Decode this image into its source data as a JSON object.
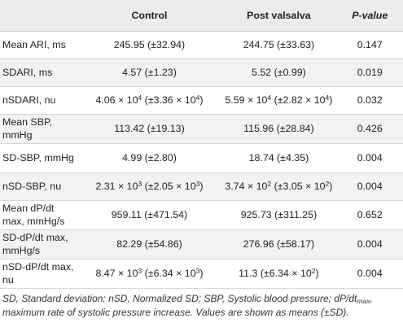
{
  "table": {
    "headers": [
      "",
      "Control",
      "Post valsalva",
      "P-value"
    ],
    "rows": [
      {
        "label": "Mean ARI, ms",
        "control": "245.95 (±32.94)",
        "post": "244.75 (±33.63)",
        "p": "0.147"
      },
      {
        "label": "SDARI, ms",
        "control": "4.57 (±1.23)",
        "post": "5.52 (±0.99)",
        "p": "0.019"
      },
      {
        "label": "nSDARI, nu",
        "control": {
          "a": "4.06 × 10",
          "ae": "4",
          "b": " (±3.36 × 10",
          "be": "4",
          "c": ")"
        },
        "post": {
          "a": "5.59 × 10",
          "ae": "4",
          "b": " (±2.82 × 10",
          "be": "4",
          "c": ")"
        },
        "p": "0.032"
      },
      {
        "label": "Mean SBP, mmHg",
        "control": "113.42 (±19.13)",
        "post": "115.96 (±28.84)",
        "p": "0.426"
      },
      {
        "label": "SD-SBP, mmHg",
        "control": "4.99 (±2.80)",
        "post": "18.74 (±4.35)",
        "p": "0.004"
      },
      {
        "label": "nSD-SBP, nu",
        "control": {
          "a": "2.31 × 10",
          "ae": "3",
          "b": " (±2.05 × 10",
          "be": "3",
          "c": ")"
        },
        "post": {
          "a": "3.74 × 10",
          "ae": "2",
          "b": " (±3.05 × 10",
          "be": "2",
          "c": ")"
        },
        "p": "0.004"
      },
      {
        "label": "Mean dP/dt max, mmHg/s",
        "control": "959.11 (±471.54)",
        "post": "925.73 (±311.25)",
        "p": "0.652"
      },
      {
        "label": "SD-dP/dt max, mmHg/s",
        "control": "82.29 (±54.86)",
        "post": "276.96 (±58.17)",
        "p": "0.004"
      },
      {
        "label": "nSD-dP/dt max, nu",
        "control": {
          "a": "8.47 × 10",
          "ae": "3",
          "b": " (±6.34 × 10",
          "be": "3",
          "c": ")"
        },
        "post": {
          "a": "11.3 (±6.34 × 10",
          "ae": "2",
          "b": ")",
          "be": "",
          "c": ""
        },
        "p": "0.004"
      }
    ]
  },
  "footnote": {
    "part1": "SD, Standard deviation; nSD, Normalized SD; SBP, Systolic blood pressure; dP/dt",
    "sub": "max",
    "part2": ",",
    "line2": "maximum rate of systolic pressure increase. Values are shown as means (±SD)."
  }
}
